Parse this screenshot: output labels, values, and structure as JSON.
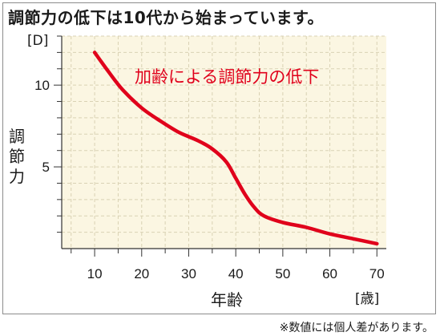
{
  "title": "調節力の低下は10代から始まっています。",
  "footnote": "※数値には個人差があります。",
  "colors": {
    "plot_background": "#fbf6e2",
    "curve": "#e0001b",
    "grid": "#d9d2b4",
    "annotation": "#e0001b"
  },
  "chart_data": {
    "type": "line",
    "title": "調節力の低下は10代から始まっています。",
    "xlabel": "年齢",
    "ylabel": "調\n節\n力",
    "x_unit": "[歳]",
    "y_unit": "[D]",
    "xlim": [
      3,
      72
    ],
    "ylim": [
      0,
      13
    ],
    "x_ticks": [
      10,
      20,
      30,
      40,
      50,
      60,
      70
    ],
    "y_ticks": [
      5,
      10
    ],
    "grid": true,
    "annotations": [
      {
        "text": "加齢による調節力の低下"
      }
    ],
    "series": [
      {
        "x": [
          10,
          13,
          16,
          20,
          24,
          28,
          32,
          35,
          38,
          40,
          42,
          44,
          46,
          50,
          55,
          60,
          65,
          70
        ],
        "y": [
          12.0,
          10.8,
          9.7,
          8.6,
          7.8,
          7.1,
          6.6,
          6.1,
          5.3,
          4.3,
          3.3,
          2.5,
          2.0,
          1.6,
          1.3,
          0.9,
          0.6,
          0.3
        ]
      }
    ]
  }
}
